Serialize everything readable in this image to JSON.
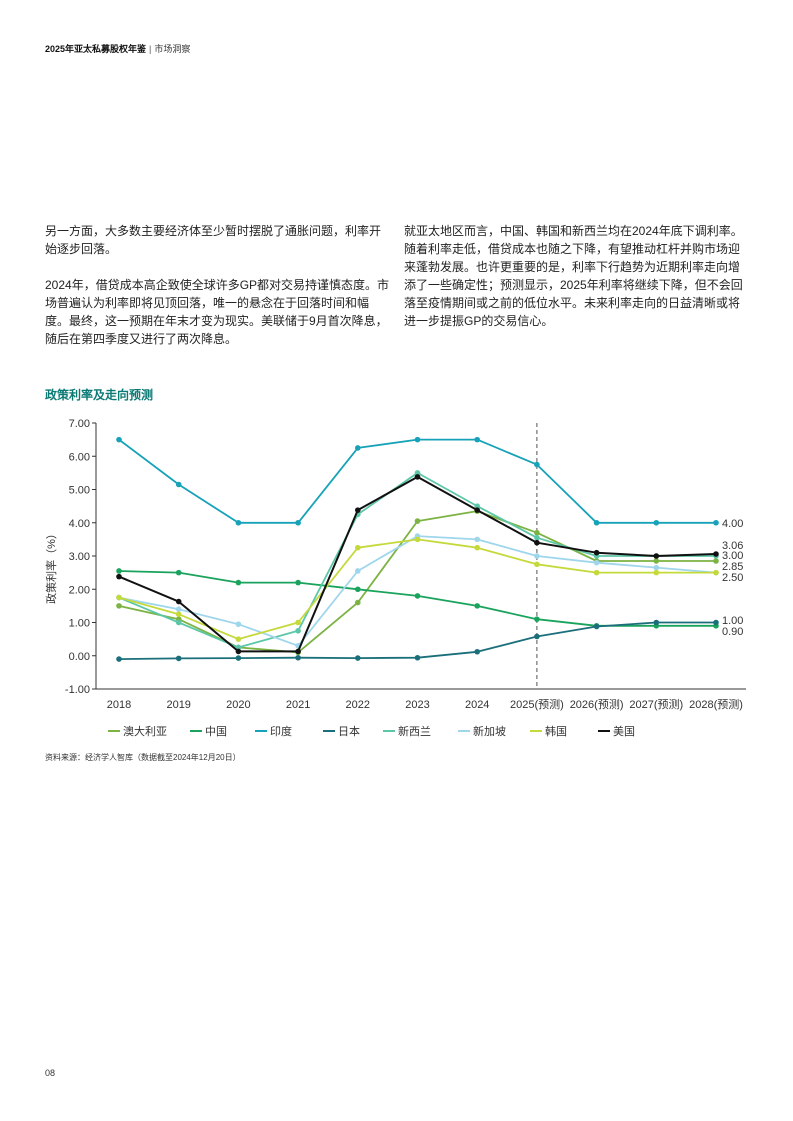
{
  "header": {
    "title": "2025年亚太私募股权年鉴",
    "separator": "|",
    "section": "市场洞察"
  },
  "body": {
    "left": [
      "另一方面，大多数主要经济体至少暂时摆脱了通胀问题，利率开始逐步回落。",
      "2024年，借贷成本高企致使全球许多GP都对交易持谨慎态度。市场普遍认为利率即将见顶回落，唯一的悬念在于回落时间和幅度。最终，这一预期在年末才变为现实。美联储于9月首次降息，随后在第四季度又进行了两次降息。"
    ],
    "right": [
      "就亚太地区而言，中国、韩国和新西兰均在2024年底下调利率。随着利率走低，借贷成本也随之下降，有望推动杠杆并购市场迎来蓬勃发展。也许更重要的是，利率下行趋势为近期利率走向增添了一些确定性；预测显示，2025年利率将继续下降，但不会回落至疫情期间或之前的低位水平。未来利率走向的日益清晰或将进一步提振GP的交易信心。"
    ]
  },
  "chart_title": "政策利率及走向预测",
  "source": "资料来源：经济学人智库（数据截至2024年12月20日）",
  "page_number": "08",
  "chart_data": {
    "type": "line",
    "title": "政策利率及走向预测",
    "ylabel": "政策利率（%）",
    "xlabel": "",
    "ylim": [
      -1,
      7
    ],
    "yticks": [
      -1,
      0,
      1,
      2,
      3,
      4,
      5,
      6,
      7
    ],
    "ytick_labels": [
      "-1.00",
      "0.00",
      "1.00",
      "2.00",
      "3.00",
      "4.00",
      "5.00",
      "6.00",
      "7.00"
    ],
    "categories": [
      "2018",
      "2019",
      "2020",
      "2021",
      "2022",
      "2023",
      "2024",
      "2025(预测)",
      "2026(预测)",
      "2027(预测)",
      "2028(预测)"
    ],
    "forecast_divider": "2025(预测)",
    "grid": false,
    "legend_position": "bottom",
    "series": [
      {
        "name": "澳大利亚",
        "color": "#7cb342",
        "values": [
          1.5,
          1.1,
          0.25,
          0.1,
          1.6,
          4.05,
          4.35,
          3.7,
          2.85,
          2.85,
          2.85
        ]
      },
      {
        "name": "中国",
        "color": "#1aa35c",
        "values": [
          2.55,
          2.5,
          2.2,
          2.2,
          2.0,
          1.8,
          1.5,
          1.1,
          0.9,
          0.9,
          0.9
        ]
      },
      {
        "name": "印度",
        "color": "#16a2b8",
        "values": [
          6.5,
          5.15,
          4.0,
          4.0,
          6.25,
          6.5,
          6.5,
          5.75,
          4.0,
          4.0,
          4.0
        ]
      },
      {
        "name": "日本",
        "color": "#1b6f7a",
        "values": [
          -0.1,
          -0.08,
          -0.07,
          -0.06,
          -0.07,
          -0.06,
          0.12,
          0.58,
          0.88,
          1.0,
          1.0
        ]
      },
      {
        "name": "新西兰",
        "color": "#5cc7a8",
        "values": [
          1.75,
          1.0,
          0.25,
          0.75,
          4.25,
          5.5,
          4.5,
          3.55,
          3.0,
          3.0,
          3.0
        ]
      },
      {
        "name": "新加坡",
        "color": "#9fd6ec",
        "values": [
          1.75,
          1.4,
          0.95,
          0.3,
          2.55,
          3.6,
          3.5,
          3.0,
          2.8,
          2.65,
          2.5
        ]
      },
      {
        "name": "韩国",
        "color": "#c5d93b",
        "values": [
          1.75,
          1.25,
          0.5,
          1.0,
          3.25,
          3.5,
          3.25,
          2.75,
          2.5,
          2.5,
          2.5
        ]
      },
      {
        "name": "美国",
        "color": "#111111",
        "values": [
          2.38,
          1.63,
          0.13,
          0.13,
          4.38,
          5.38,
          4.38,
          3.4,
          3.1,
          3.0,
          3.06
        ]
      }
    ],
    "end_labels": [
      "4.00",
      "3.06",
      "3.00",
      "2.85",
      "2.50",
      "1.00",
      "0.90"
    ]
  }
}
